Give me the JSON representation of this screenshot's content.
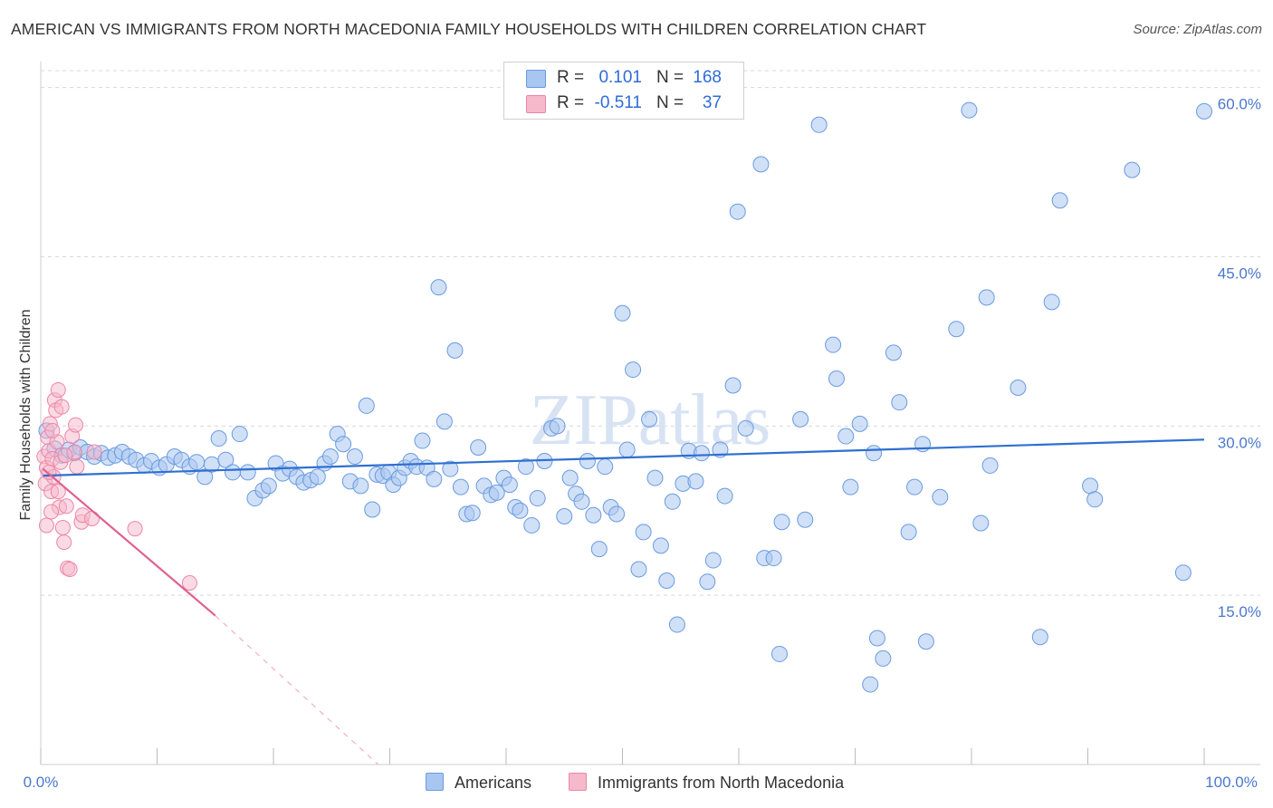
{
  "header": {
    "title": "AMERICAN VS IMMIGRANTS FROM NORTH MACEDONIA FAMILY HOUSEHOLDS WITH CHILDREN CORRELATION CHART",
    "source": "Source: ZipAtlas.com"
  },
  "watermark": "ZIPatlas",
  "legend": {
    "americans": {
      "r_label": "R =",
      "r_value": "0.101",
      "n_label": "N =",
      "n_value": "168"
    },
    "immigrants": {
      "r_label": "R =",
      "r_value": "-0.511",
      "n_label": "N =",
      "n_value": "37"
    }
  },
  "colors": {
    "blue_fill": "#a9c6f0",
    "blue_stroke": "#6a9be0",
    "blue_line": "#2f6fd0",
    "pink_fill": "#f6b8cb",
    "pink_stroke": "#ee85a6",
    "pink_line": "#e06090",
    "axis_text": "#4a78cc",
    "grid": "#d8d8d8"
  },
  "chart_data": {
    "type": "scatter",
    "title": "AMERICAN VS IMMIGRANTS FROM NORTH MACEDONIA FAMILY HOUSEHOLDS WITH CHILDREN CORRELATION CHART",
    "xlabel": "",
    "ylabel": "Family Households with Children",
    "x_tick_labels": [
      "0.0%",
      "100.0%"
    ],
    "y_tick_labels": [
      "15.0%",
      "30.0%",
      "45.0%",
      "60.0%"
    ],
    "y_ticks": [
      15,
      30,
      45,
      60
    ],
    "xlim": [
      0,
      100
    ],
    "ylim": [
      0,
      61.5
    ],
    "grid": true,
    "legend_position": "bottom",
    "series": [
      {
        "name": "Americans",
        "r": 0.101,
        "n": 168,
        "trend": {
          "x0": 0.2,
          "y0": 25.6,
          "x1": 100,
          "y1": 28.8
        },
        "points": [
          [
            0.5,
            29.6
          ],
          [
            1.2,
            28.0
          ],
          [
            1.8,
            27.4
          ],
          [
            2.4,
            27.9
          ],
          [
            2.9,
            27.6
          ],
          [
            3.4,
            28.1
          ],
          [
            4.0,
            27.7
          ],
          [
            4.6,
            27.3
          ],
          [
            5.2,
            27.6
          ],
          [
            5.8,
            27.2
          ],
          [
            6.4,
            27.4
          ],
          [
            7.0,
            27.7
          ],
          [
            7.6,
            27.3
          ],
          [
            8.2,
            27.0
          ],
          [
            8.9,
            26.5
          ],
          [
            9.5,
            26.9
          ],
          [
            10.2,
            26.3
          ],
          [
            10.8,
            26.6
          ],
          [
            11.5,
            27.3
          ],
          [
            12.1,
            27.0
          ],
          [
            12.8,
            26.4
          ],
          [
            13.4,
            26.8
          ],
          [
            14.1,
            25.5
          ],
          [
            14.7,
            26.6
          ],
          [
            15.3,
            28.9
          ],
          [
            15.9,
            27.0
          ],
          [
            16.5,
            25.9
          ],
          [
            17.1,
            29.3
          ],
          [
            17.8,
            25.9
          ],
          [
            18.4,
            23.6
          ],
          [
            19.1,
            24.3
          ],
          [
            19.6,
            24.7
          ],
          [
            20.2,
            26.7
          ],
          [
            20.8,
            25.8
          ],
          [
            21.4,
            26.2
          ],
          [
            22.0,
            25.5
          ],
          [
            22.6,
            25.0
          ],
          [
            23.2,
            25.2
          ],
          [
            23.8,
            25.5
          ],
          [
            24.4,
            26.7
          ],
          [
            24.9,
            27.3
          ],
          [
            25.5,
            29.3
          ],
          [
            26.0,
            28.4
          ],
          [
            26.6,
            25.1
          ],
          [
            27.0,
            27.3
          ],
          [
            27.5,
            24.7
          ],
          [
            28.0,
            31.8
          ],
          [
            28.5,
            22.6
          ],
          [
            28.9,
            25.7
          ],
          [
            29.4,
            25.6
          ],
          [
            29.9,
            25.9
          ],
          [
            30.3,
            24.8
          ],
          [
            30.8,
            25.4
          ],
          [
            31.3,
            26.3
          ],
          [
            31.8,
            26.9
          ],
          [
            32.3,
            26.4
          ],
          [
            32.8,
            28.7
          ],
          [
            33.2,
            26.3
          ],
          [
            33.8,
            25.3
          ],
          [
            34.2,
            42.3
          ],
          [
            34.7,
            30.4
          ],
          [
            35.2,
            26.2
          ],
          [
            35.6,
            36.7
          ],
          [
            36.1,
            24.6
          ],
          [
            36.6,
            22.2
          ],
          [
            37.1,
            22.3
          ],
          [
            37.6,
            28.1
          ],
          [
            38.1,
            24.7
          ],
          [
            38.7,
            23.9
          ],
          [
            39.2,
            24.1
          ],
          [
            39.8,
            25.4
          ],
          [
            40.3,
            24.8
          ],
          [
            40.8,
            22.8
          ],
          [
            41.2,
            22.5
          ],
          [
            41.7,
            26.4
          ],
          [
            42.2,
            21.2
          ],
          [
            42.7,
            23.6
          ],
          [
            43.3,
            26.9
          ],
          [
            43.9,
            29.8
          ],
          [
            44.4,
            30.0
          ],
          [
            45.0,
            22.0
          ],
          [
            45.5,
            25.4
          ],
          [
            46.0,
            24.0
          ],
          [
            46.5,
            23.3
          ],
          [
            47.0,
            26.9
          ],
          [
            47.5,
            22.1
          ],
          [
            48.0,
            19.1
          ],
          [
            48.5,
            26.4
          ],
          [
            49.0,
            22.8
          ],
          [
            49.5,
            22.2
          ],
          [
            50.0,
            40.0
          ],
          [
            50.4,
            27.9
          ],
          [
            50.9,
            35.0
          ],
          [
            51.4,
            17.3
          ],
          [
            51.8,
            20.6
          ],
          [
            52.3,
            30.6
          ],
          [
            52.8,
            25.4
          ],
          [
            53.3,
            19.4
          ],
          [
            53.8,
            16.3
          ],
          [
            54.3,
            23.3
          ],
          [
            54.7,
            12.4
          ],
          [
            55.2,
            24.9
          ],
          [
            55.7,
            27.8
          ],
          [
            56.3,
            25.1
          ],
          [
            56.8,
            27.6
          ],
          [
            57.3,
            16.2
          ],
          [
            57.8,
            18.1
          ],
          [
            58.4,
            27.9
          ],
          [
            58.8,
            23.8
          ],
          [
            59.5,
            33.6
          ],
          [
            59.9,
            49.0
          ],
          [
            60.6,
            29.8
          ],
          [
            61.9,
            53.2
          ],
          [
            62.2,
            18.3
          ],
          [
            63.0,
            18.3
          ],
          [
            63.5,
            9.8
          ],
          [
            63.7,
            21.5
          ],
          [
            65.3,
            30.6
          ],
          [
            65.7,
            21.7
          ],
          [
            66.9,
            56.7
          ],
          [
            68.1,
            37.2
          ],
          [
            68.4,
            34.2
          ],
          [
            69.2,
            29.1
          ],
          [
            69.6,
            24.6
          ],
          [
            70.4,
            30.2
          ],
          [
            71.3,
            7.1
          ],
          [
            71.6,
            27.6
          ],
          [
            71.9,
            11.2
          ],
          [
            72.4,
            9.4
          ],
          [
            73.3,
            36.5
          ],
          [
            73.8,
            32.1
          ],
          [
            74.6,
            20.6
          ],
          [
            75.1,
            24.6
          ],
          [
            75.8,
            28.4
          ],
          [
            76.1,
            10.9
          ],
          [
            77.3,
            23.7
          ],
          [
            78.7,
            38.6
          ],
          [
            79.8,
            58.0
          ],
          [
            80.8,
            21.4
          ],
          [
            81.3,
            41.4
          ],
          [
            81.6,
            26.5
          ],
          [
            84.0,
            33.4
          ],
          [
            85.9,
            11.3
          ],
          [
            86.9,
            41.0
          ],
          [
            87.6,
            50.0
          ],
          [
            90.2,
            24.7
          ],
          [
            90.6,
            23.5
          ],
          [
            93.8,
            52.7
          ],
          [
            98.2,
            17.0
          ],
          [
            100.0,
            57.9
          ]
        ]
      },
      {
        "name": "Immigrants from North Macedonia",
        "r": -0.511,
        "n": 37,
        "trend": {
          "x0": 0.2,
          "y0": 26.2,
          "x1": 15.0,
          "y1": 13.2,
          "dash_x1": 29.0,
          "dash_y1": 0.0
        },
        "points": [
          [
            0.3,
            27.3
          ],
          [
            0.4,
            24.9
          ],
          [
            0.5,
            26.3
          ],
          [
            0.5,
            21.2
          ],
          [
            0.6,
            29.0
          ],
          [
            0.7,
            27.8
          ],
          [
            0.8,
            30.2
          ],
          [
            0.9,
            24.2
          ],
          [
            1.0,
            27.1
          ],
          [
            1.1,
            25.5
          ],
          [
            1.2,
            32.3
          ],
          [
            1.3,
            31.4
          ],
          [
            1.4,
            28.6
          ],
          [
            1.5,
            33.2
          ],
          [
            1.6,
            22.8
          ],
          [
            1.7,
            26.8
          ],
          [
            1.8,
            31.7
          ],
          [
            1.9,
            21.0
          ],
          [
            2.0,
            19.7
          ],
          [
            2.2,
            22.9
          ],
          [
            2.3,
            17.4
          ],
          [
            2.5,
            17.3
          ],
          [
            2.7,
            29.1
          ],
          [
            2.9,
            27.7
          ],
          [
            3.0,
            30.1
          ],
          [
            3.1,
            26.4
          ],
          [
            3.5,
            21.5
          ],
          [
            3.6,
            22.1
          ],
          [
            4.4,
            21.8
          ],
          [
            4.6,
            27.7
          ],
          [
            8.1,
            20.9
          ],
          [
            12.8,
            16.1
          ],
          [
            0.9,
            22.4
          ],
          [
            1.5,
            24.2
          ],
          [
            0.7,
            25.9
          ],
          [
            2.1,
            27.4
          ],
          [
            1.0,
            29.6
          ]
        ]
      }
    ]
  }
}
